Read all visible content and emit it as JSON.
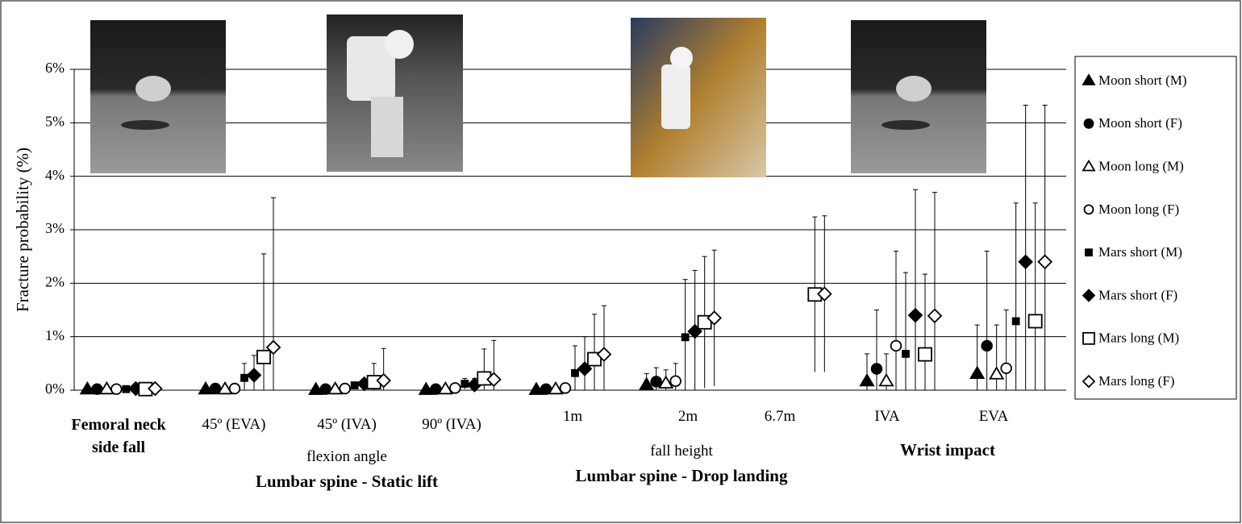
{
  "chart_data": {
    "type": "errorbar",
    "y_label": "Fracture probability (%)",
    "categories": [
      "Femoral neck side fall",
      "45º (EVA)",
      "45º (IVA)",
      "90º (IVA)",
      "1m",
      "2m",
      "6.7m",
      "IVA",
      "EVA"
    ],
    "annotations": [
      "flexion angle",
      "Lumbar spine - Static lift",
      "fall height",
      "Lumbar spine -  Drop landing",
      "Wrist impact"
    ],
    "ylim": [
      0,
      6
    ],
    "yticks": [
      {
        "value": 0,
        "label": "0%"
      },
      {
        "value": 1,
        "label": "1%"
      },
      {
        "value": 2,
        "label": "2%"
      },
      {
        "value": 3,
        "label": "3%"
      },
      {
        "value": 4,
        "label": "4%"
      },
      {
        "value": 5,
        "label": "5%"
      },
      {
        "value": 6,
        "label": "6%"
      }
    ],
    "grid": true,
    "legend": "right",
    "series": [
      {
        "name": "Moon short (M)",
        "color": "#000000",
        "marker": "triangle",
        "filled": true,
        "values": [
          0.02,
          0.02,
          0.01,
          0.01,
          0.01,
          0.1,
          null,
          0.17,
          0.31
        ],
        "errors": [
          0.02,
          0.02,
          0.01,
          0.01,
          0.01,
          0.21,
          null,
          0.51,
          0.91
        ]
      },
      {
        "name": "Moon short (F)",
        "color": "#000000",
        "marker": "circle",
        "filled": true,
        "values": [
          0.02,
          0.03,
          0.02,
          0.02,
          0.02,
          0.16,
          null,
          0.4,
          0.83
        ],
        "errors": [
          0.02,
          0.03,
          0.02,
          0.02,
          0.02,
          0.26,
          null,
          1.1,
          1.77
        ]
      },
      {
        "name": "Moon long (M)",
        "color": "#000000",
        "marker": "triangle",
        "filled": false,
        "values": [
          0.02,
          0.02,
          0.02,
          0.02,
          0.02,
          0.13,
          null,
          0.17,
          0.3
        ],
        "errors": [
          0.02,
          0.02,
          0.02,
          0.02,
          0.02,
          0.25,
          null,
          0.51,
          0.92
        ]
      },
      {
        "name": "Moon long (F)",
        "color": "#000000",
        "marker": "circle",
        "filled": false,
        "values": [
          0.02,
          0.03,
          0.03,
          0.04,
          0.04,
          0.17,
          null,
          0.83,
          0.41
        ],
        "errors": [
          0.02,
          0.03,
          0.03,
          0.04,
          0.04,
          0.33,
          null,
          1.77,
          1.09
        ]
      },
      {
        "name": "Mars short (M)",
        "color": "#000000",
        "marker": "square-small",
        "filled": true,
        "values": [
          0.02,
          0.23,
          0.09,
          0.12,
          0.32,
          0.99,
          null,
          0.68,
          1.29
        ],
        "errors": [
          0.02,
          0.27,
          0.06,
          0.1,
          0.51,
          1.08,
          null,
          1.52,
          2.21
        ]
      },
      {
        "name": "Mars short (F)",
        "color": "#000000",
        "marker": "diamond",
        "filled": true,
        "values": [
          0.03,
          0.28,
          0.12,
          0.1,
          0.4,
          1.1,
          null,
          1.4,
          2.4
        ],
        "errors": [
          0.03,
          0.37,
          0.08,
          0.12,
          0.6,
          1.14,
          null,
          2.35,
          2.93
        ]
      },
      {
        "name": "Mars long (M)",
        "color": "#000000",
        "marker": "square",
        "filled": false,
        "values": [
          0.02,
          0.62,
          0.15,
          0.22,
          0.58,
          1.27,
          1.79,
          0.67,
          1.29
        ],
        "errors": [
          0.02,
          1.93,
          0.35,
          0.55,
          0.84,
          1.23,
          1.45,
          1.5,
          2.21
        ]
      },
      {
        "name": "Mars long (F)",
        "color": "#000000",
        "marker": "diamond",
        "filled": false,
        "values": [
          0.03,
          0.8,
          0.18,
          0.2,
          0.67,
          1.35,
          1.8,
          1.39,
          2.4
        ],
        "errors": [
          0.03,
          2.8,
          0.6,
          0.73,
          0.91,
          1.27,
          1.46,
          2.31,
          2.93
        ]
      }
    ]
  }
}
